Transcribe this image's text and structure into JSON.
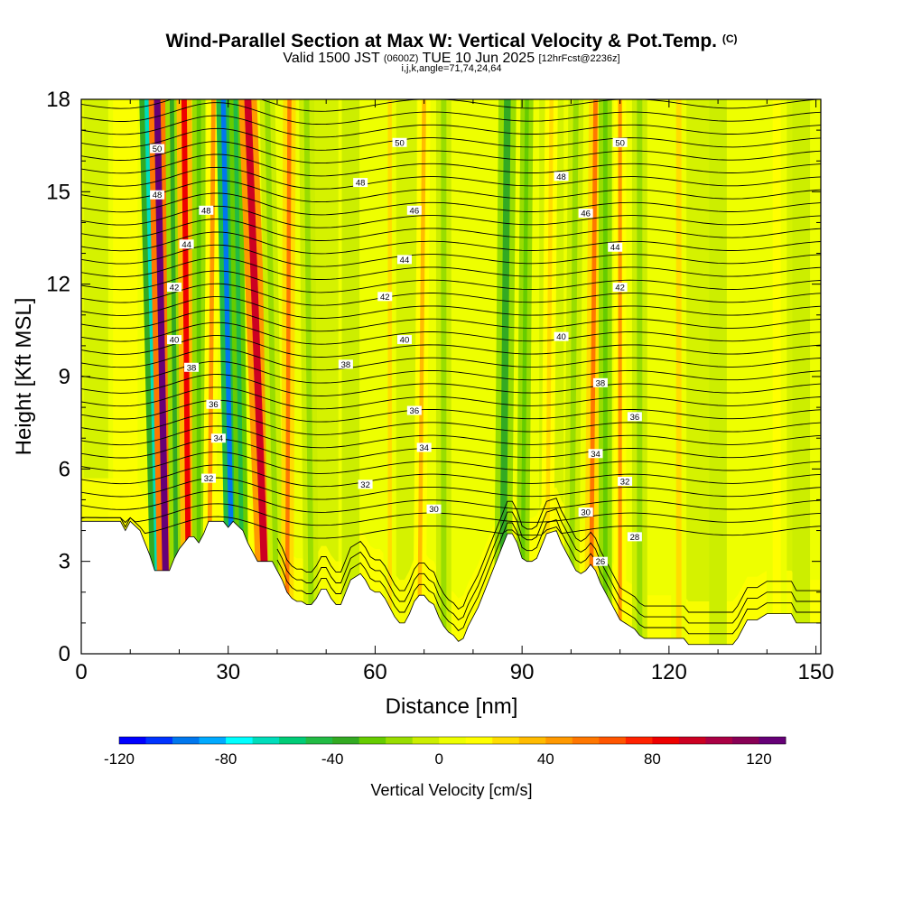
{
  "title": {
    "main": "Wind-Parallel Section at Max W: Vertical Velocity & Pot.Temp.",
    "main_suffix": "(C)",
    "valid": "Valid 1500 JST",
    "valid_zulu": "(0600Z)",
    "valid_date": "TUE 10 Jun 2025",
    "forecast": "[12hrFcst@2236z]",
    "indices": "i,j,k,angle=71,74,24,64"
  },
  "chart_data": {
    "type": "heatmap",
    "xlabel": "Distance [nm]",
    "ylabel": "Height [Kft MSL]",
    "xlim": [
      0,
      151
    ],
    "ylim": [
      0,
      18
    ],
    "xticks": [
      0,
      30,
      60,
      90,
      120,
      150
    ],
    "yticks": [
      0,
      3,
      6,
      9,
      12,
      15,
      18
    ],
    "colorbar": {
      "label": "Vertical Velocity [cm/s]",
      "min": -120,
      "max": 130,
      "step": 10,
      "ticks": [
        -120,
        -80,
        -40,
        0,
        40,
        80,
        120
      ],
      "colors": [
        "#0000ff",
        "#0033ff",
        "#0077ee",
        "#00aaff",
        "#00ffff",
        "#00ddbb",
        "#00cc77",
        "#22bb44",
        "#33aa22",
        "#66cc00",
        "#99dd00",
        "#ccee00",
        "#eeff00",
        "#ffff00",
        "#ffdd00",
        "#ffbb00",
        "#ff9900",
        "#ff7700",
        "#ff5500",
        "#ff2200",
        "#ee0000",
        "#cc0022",
        "#aa0044",
        "#880055",
        "#660077"
      ]
    },
    "terrain_kft": [
      [
        0,
        4.3
      ],
      [
        8,
        4.3
      ],
      [
        9,
        4.0
      ],
      [
        10,
        4.3
      ],
      [
        12,
        4.0
      ],
      [
        13,
        3.6
      ],
      [
        14,
        3.2
      ],
      [
        15,
        2.7
      ],
      [
        16,
        2.7
      ],
      [
        17,
        2.7
      ],
      [
        18,
        2.7
      ],
      [
        19,
        3.1
      ],
      [
        20,
        3.4
      ],
      [
        21,
        3.6
      ],
      [
        22,
        3.8
      ],
      [
        23,
        3.8
      ],
      [
        24,
        3.6
      ],
      [
        25,
        3.9
      ],
      [
        26,
        4.3
      ],
      [
        29,
        4.3
      ],
      [
        30,
        4.1
      ],
      [
        31,
        4.3
      ],
      [
        33,
        4.0
      ],
      [
        34,
        3.6
      ],
      [
        35,
        3.3
      ],
      [
        36,
        3.0
      ],
      [
        39,
        3.0
      ],
      [
        40,
        2.7
      ],
      [
        41,
        2.4
      ],
      [
        42,
        2.0
      ],
      [
        43,
        1.8
      ],
      [
        44,
        1.7
      ],
      [
        45,
        1.7
      ],
      [
        46,
        1.6
      ],
      [
        47,
        1.6
      ],
      [
        48,
        1.8
      ],
      [
        49,
        2.1
      ],
      [
        50,
        2.1
      ],
      [
        51,
        1.8
      ],
      [
        52,
        1.6
      ],
      [
        53,
        1.6
      ],
      [
        54,
        2.0
      ],
      [
        55,
        2.4
      ],
      [
        57,
        2.6
      ],
      [
        58,
        2.4
      ],
      [
        59,
        2.1
      ],
      [
        60,
        2.0
      ],
      [
        61,
        2.0
      ],
      [
        62,
        1.8
      ],
      [
        63,
        1.5
      ],
      [
        64,
        1.2
      ],
      [
        65,
        1.0
      ],
      [
        66,
        1.0
      ],
      [
        67,
        1.3
      ],
      [
        68,
        1.7
      ],
      [
        69,
        1.9
      ],
      [
        70,
        1.9
      ],
      [
        71,
        1.7
      ],
      [
        72,
        1.6
      ],
      [
        73,
        1.2
      ],
      [
        74,
        0.9
      ],
      [
        75,
        0.7
      ],
      [
        76,
        0.6
      ],
      [
        77,
        0.4
      ],
      [
        78,
        0.5
      ],
      [
        79,
        0.9
      ],
      [
        80,
        1.2
      ],
      [
        81,
        1.5
      ],
      [
        82,
        1.9
      ],
      [
        83,
        2.3
      ],
      [
        84,
        2.7
      ],
      [
        85,
        3.1
      ],
      [
        86,
        3.5
      ],
      [
        87,
        3.9
      ],
      [
        88,
        3.9
      ],
      [
        89,
        3.6
      ],
      [
        90,
        3.1
      ],
      [
        91,
        3.0
      ],
      [
        92,
        3.0
      ],
      [
        93,
        3.1
      ],
      [
        94,
        3.5
      ],
      [
        95,
        3.9
      ],
      [
        97,
        4.0
      ],
      [
        98,
        3.6
      ],
      [
        99,
        3.3
      ],
      [
        100,
        3.0
      ],
      [
        101,
        2.7
      ],
      [
        102,
        2.6
      ],
      [
        103,
        2.7
      ],
      [
        104,
        2.9
      ],
      [
        105,
        2.7
      ],
      [
        106,
        2.3
      ],
      [
        107,
        2.0
      ],
      [
        108,
        1.7
      ],
      [
        109,
        1.4
      ],
      [
        110,
        1.1
      ],
      [
        111,
        1.0
      ],
      [
        112,
        0.9
      ],
      [
        113,
        0.8
      ],
      [
        114,
        0.6
      ],
      [
        115,
        0.5
      ],
      [
        116,
        0.5
      ],
      [
        123,
        0.5
      ],
      [
        124,
        0.3
      ],
      [
        126,
        0.3
      ],
      [
        131,
        0.3
      ],
      [
        132,
        0.3
      ],
      [
        133,
        0.3
      ],
      [
        134,
        0.5
      ],
      [
        135,
        0.8
      ],
      [
        136,
        1.1
      ],
      [
        138,
        1.1
      ],
      [
        140,
        1.3
      ],
      [
        141,
        1.3
      ],
      [
        145,
        1.3
      ],
      [
        146,
        1.0
      ],
      [
        151,
        1.0
      ]
    ],
    "w_bands_cm_s": [
      {
        "x_bottom": 16,
        "x_top": 13.5,
        "w": -70,
        "width": 2.2
      },
      {
        "x_bottom": 17.5,
        "x_top": 15.5,
        "w": 120,
        "width": 2.4
      },
      {
        "x_bottom": 19.5,
        "x_top": 18.5,
        "w": -40,
        "width": 1.6
      },
      {
        "x_bottom": 22,
        "x_top": 21,
        "w": 80,
        "width": 2.0
      },
      {
        "x_bottom": 24,
        "x_top": 24,
        "w": -30,
        "width": 1.6
      },
      {
        "x_bottom": 26,
        "x_top": 27,
        "w": 40,
        "width": 1.6
      },
      {
        "x_bottom": 31,
        "x_top": 29,
        "w": -100,
        "width": 1.8
      },
      {
        "x_bottom": 33,
        "x_top": 31.5,
        "w": -50,
        "width": 1.6
      },
      {
        "x_bottom": 38,
        "x_top": 34,
        "w": 90,
        "width": 2.6
      },
      {
        "x_bottom": 40,
        "x_top": 38,
        "w": -20,
        "width": 2.0
      },
      {
        "x_bottom": 42,
        "x_top": 42.5,
        "w": 50,
        "width": 1.5
      },
      {
        "x_bottom": 47,
        "x_top": 46,
        "w": -15,
        "width": 2.0
      },
      {
        "x_bottom": 55,
        "x_top": 55,
        "w": -10,
        "width": 2.5
      },
      {
        "x_bottom": 63,
        "x_top": 63,
        "w": 20,
        "width": 1.5
      },
      {
        "x_bottom": 69,
        "x_top": 70,
        "w": 30,
        "width": 1.5
      },
      {
        "x_bottom": 74,
        "x_top": 74,
        "w": -15,
        "width": 2.0
      },
      {
        "x_bottom": 86,
        "x_top": 87,
        "w": -40,
        "width": 2.5
      },
      {
        "x_bottom": 90,
        "x_top": 91,
        "w": -25,
        "width": 1.5
      },
      {
        "x_bottom": 95,
        "x_top": 96,
        "w": 25,
        "width": 1.5
      },
      {
        "x_bottom": 100,
        "x_top": 101,
        "w": -20,
        "width": 2.0
      },
      {
        "x_bottom": 104,
        "x_top": 105,
        "w": 50,
        "width": 1.6
      },
      {
        "x_bottom": 107,
        "x_top": 107,
        "w": -30,
        "width": 1.6
      },
      {
        "x_bottom": 110,
        "x_top": 110,
        "w": 40,
        "width": 1.4
      },
      {
        "x_bottom": 114,
        "x_top": 114,
        "w": -15,
        "width": 2.0
      },
      {
        "x_bottom": 122,
        "x_top": 122,
        "w": 20,
        "width": 2.0
      },
      {
        "x_bottom": 130,
        "x_top": 130,
        "w": -10,
        "width": 2.5
      },
      {
        "x_bottom": 142,
        "x_top": 142,
        "w": 15,
        "width": 3.0
      },
      {
        "x_bottom": 147,
        "x_top": 147,
        "w": -10,
        "width": 2.5
      }
    ],
    "theta_contour_interval_c": 1,
    "theta_labels": [
      {
        "x": 15.5,
        "y": 16.4,
        "text": "50"
      },
      {
        "x": 15.5,
        "y": 14.9,
        "text": "48"
      },
      {
        "x": 25.5,
        "y": 14.4,
        "text": "48"
      },
      {
        "x": 21.5,
        "y": 13.3,
        "text": "44"
      },
      {
        "x": 19,
        "y": 11.9,
        "text": "42"
      },
      {
        "x": 19,
        "y": 10.2,
        "text": "40"
      },
      {
        "x": 22.5,
        "y": 9.3,
        "text": "38"
      },
      {
        "x": 27,
        "y": 8.1,
        "text": "36"
      },
      {
        "x": 28,
        "y": 7.0,
        "text": "34"
      },
      {
        "x": 26,
        "y": 5.7,
        "text": "32"
      },
      {
        "x": 65,
        "y": 16.6,
        "text": "50"
      },
      {
        "x": 57,
        "y": 15.3,
        "text": "48"
      },
      {
        "x": 68,
        "y": 14.4,
        "text": "46"
      },
      {
        "x": 66,
        "y": 12.8,
        "text": "44"
      },
      {
        "x": 62,
        "y": 11.6,
        "text": "42"
      },
      {
        "x": 66,
        "y": 10.2,
        "text": "40"
      },
      {
        "x": 54,
        "y": 9.4,
        "text": "38"
      },
      {
        "x": 68,
        "y": 7.9,
        "text": "36"
      },
      {
        "x": 70,
        "y": 6.7,
        "text": "34"
      },
      {
        "x": 58,
        "y": 5.5,
        "text": "32"
      },
      {
        "x": 72,
        "y": 4.7,
        "text": "30"
      },
      {
        "x": 110,
        "y": 16.6,
        "text": "50"
      },
      {
        "x": 98,
        "y": 15.5,
        "text": "48"
      },
      {
        "x": 103,
        "y": 14.3,
        "text": "46"
      },
      {
        "x": 109,
        "y": 13.2,
        "text": "44"
      },
      {
        "x": 110,
        "y": 11.9,
        "text": "42"
      },
      {
        "x": 98,
        "y": 10.3,
        "text": "40"
      },
      {
        "x": 106,
        "y": 8.8,
        "text": "38"
      },
      {
        "x": 113,
        "y": 7.7,
        "text": "36"
      },
      {
        "x": 105,
        "y": 6.5,
        "text": "34"
      },
      {
        "x": 111,
        "y": 5.6,
        "text": "32"
      },
      {
        "x": 103,
        "y": 4.6,
        "text": "30"
      },
      {
        "x": 113,
        "y": 3.8,
        "text": "28"
      },
      {
        "x": 106,
        "y": 3.0,
        "text": "26"
      }
    ]
  }
}
